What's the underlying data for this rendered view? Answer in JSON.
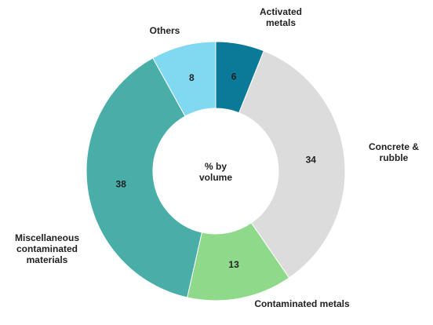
{
  "chart_data": {
    "type": "donut",
    "center_label": "% by volume",
    "categories": [
      "Activated metals",
      "Concrete & rubble",
      "Contaminated metals",
      "Miscellaneous contaminated materials",
      "Others"
    ],
    "values": [
      6,
      34,
      13,
      38,
      8
    ],
    "colors": [
      "#0b7a99",
      "#dcdcdc",
      "#8fd98a",
      "#49aea7",
      "#80d9f1"
    ]
  }
}
